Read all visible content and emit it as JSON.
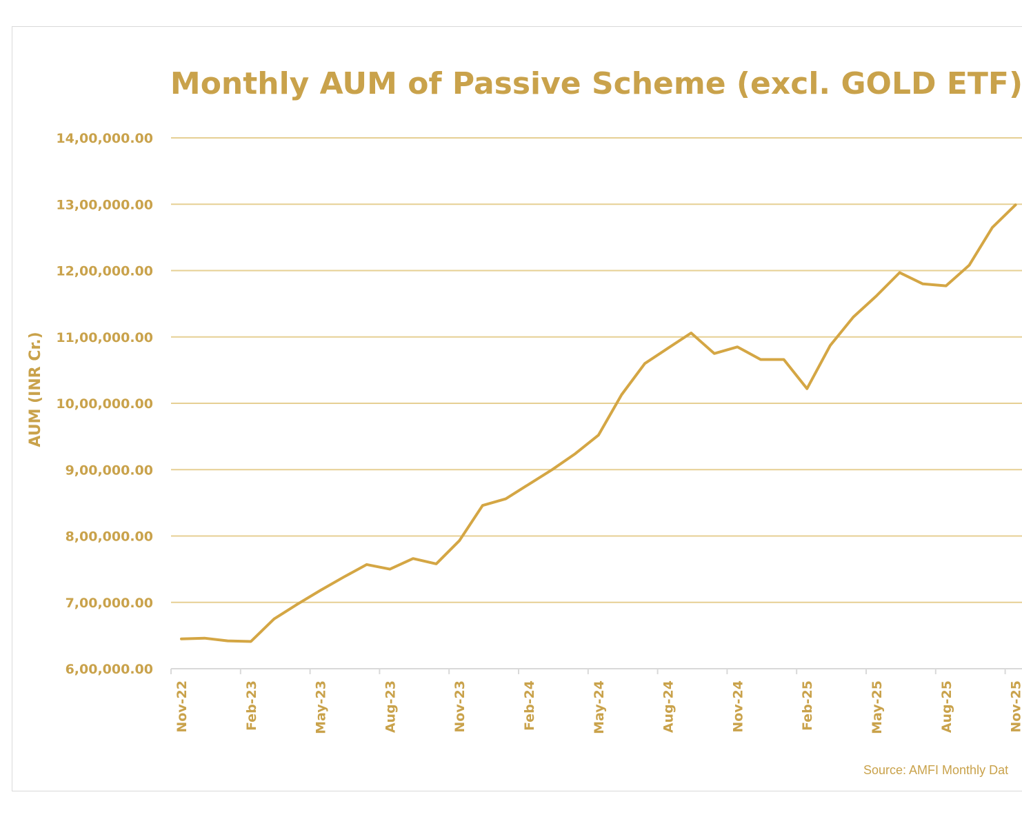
{
  "chart_data": {
    "type": "line",
    "title": "Monthly AUM of Passive Scheme (excl. GOLD ETF)",
    "ylabel": "AUM (INR Cr.)",
    "xlabel": "",
    "source": "Source: AMFI Monthly Dat",
    "ylim": [
      600000,
      1400000
    ],
    "yticks": [
      {
        "value": 1400000,
        "label": "14,00,000.00"
      },
      {
        "value": 1300000,
        "label": "13,00,000.00"
      },
      {
        "value": 1200000,
        "label": "12,00,000.00"
      },
      {
        "value": 1100000,
        "label": "11,00,000.00"
      },
      {
        "value": 1000000,
        "label": "10,00,000.00"
      },
      {
        "value": 900000,
        "label": "9,00,000.00"
      },
      {
        "value": 800000,
        "label": "8,00,000.00"
      },
      {
        "value": 700000,
        "label": "7,00,000.00"
      },
      {
        "value": 600000,
        "label": "6,00,000.00"
      }
    ],
    "xtick_labels": [
      "Nov-22",
      "Feb-23",
      "May-23",
      "Aug-23",
      "Nov-23",
      "Feb-24",
      "May-24",
      "Aug-24",
      "Nov-24",
      "Feb-25",
      "May-25",
      "Aug-25",
      "Nov-25"
    ],
    "grid": true,
    "legend": "none",
    "color": "#d4a644",
    "categories": [
      "Nov-22",
      "Dec-22",
      "Jan-23",
      "Feb-23",
      "Mar-23",
      "Apr-23",
      "May-23",
      "Jun-23",
      "Jul-23",
      "Aug-23",
      "Sep-23",
      "Oct-23",
      "Nov-23",
      "Dec-23",
      "Jan-24",
      "Feb-24",
      "Mar-24",
      "Apr-24",
      "May-24",
      "Jun-24",
      "Jul-24",
      "Aug-24",
      "Sep-24",
      "Oct-24",
      "Nov-24",
      "Dec-24",
      "Jan-25",
      "Feb-25",
      "Mar-25",
      "Apr-25",
      "May-25",
      "Jun-25",
      "Jul-25",
      "Aug-25",
      "Sep-25",
      "Oct-25",
      "Nov-25"
    ],
    "values": [
      645000,
      646000,
      642000,
      641000,
      675000,
      697000,
      718000,
      738000,
      757000,
      750000,
      766000,
      758000,
      793000,
      846000,
      856000,
      878000,
      900000,
      924000,
      952000,
      1013000,
      1060000,
      1083000,
      1106000,
      1075000,
      1085000,
      1066000,
      1066000,
      1022000,
      1087000,
      1130000,
      1162000,
      1197000,
      1180000,
      1177000,
      1208000,
      1265000,
      1299000
    ]
  }
}
